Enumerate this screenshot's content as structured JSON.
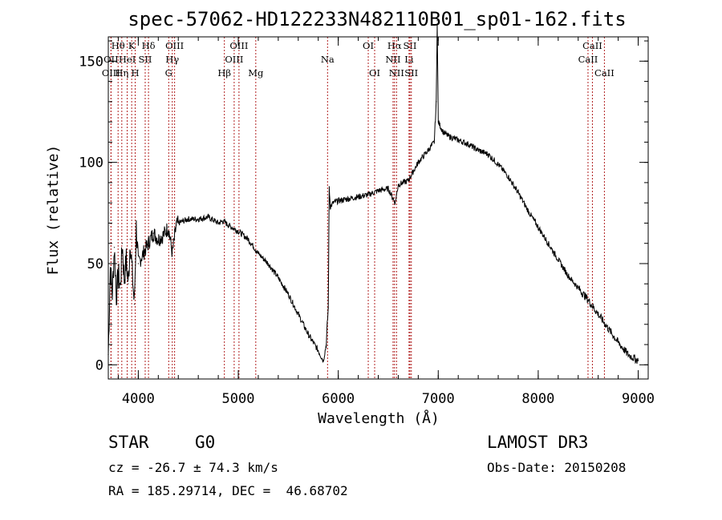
{
  "chart_data": {
    "type": "line",
    "title": "spec-57062-HD122233N482110B01_sp01-162.fits",
    "xlabel": "Wavelength (Å)",
    "ylabel": "Flux (relative)",
    "xlim": [
      3700,
      9100
    ],
    "ylim": [
      -7,
      162
    ],
    "xticks": [
      4000,
      5000,
      6000,
      7000,
      8000,
      9000
    ],
    "yticks": [
      0,
      50,
      100,
      150
    ],
    "x_minor_step": 200,
    "y_minor_step": 10,
    "series": [
      {
        "name": "Flux",
        "points": [
          [
            3700,
            5
          ],
          [
            3720,
            48
          ],
          [
            3740,
            35
          ],
          [
            3760,
            58
          ],
          [
            3780,
            34
          ],
          [
            3800,
            45
          ],
          [
            3820,
            38
          ],
          [
            3840,
            60
          ],
          [
            3860,
            42
          ],
          [
            3880,
            52
          ],
          [
            3900,
            40
          ],
          [
            3920,
            62
          ],
          [
            3940,
            45
          ],
          [
            3960,
            30
          ],
          [
            3980,
            68
          ],
          [
            4000,
            50
          ],
          [
            4050,
            55
          ],
          [
            4100,
            60
          ],
          [
            4150,
            65
          ],
          [
            4200,
            62
          ],
          [
            4250,
            64
          ],
          [
            4300,
            68
          ],
          [
            4340,
            55
          ],
          [
            4380,
            69
          ],
          [
            4400,
            70
          ],
          [
            4500,
            72
          ],
          [
            4600,
            72
          ],
          [
            4700,
            73
          ],
          [
            4800,
            70
          ],
          [
            4850,
            71
          ],
          [
            4900,
            69
          ],
          [
            5000,
            66
          ],
          [
            5100,
            62
          ],
          [
            5200,
            55
          ],
          [
            5300,
            50
          ],
          [
            5400,
            43
          ],
          [
            5500,
            35
          ],
          [
            5600,
            25
          ],
          [
            5700,
            15
          ],
          [
            5800,
            7
          ],
          [
            5850,
            2
          ],
          [
            5880,
            10
          ],
          [
            5890,
            20
          ],
          [
            5900,
            28
          ],
          [
            5910,
            88
          ],
          [
            5920,
            78
          ],
          [
            5950,
            80
          ],
          [
            6000,
            81
          ],
          [
            6100,
            82
          ],
          [
            6200,
            83
          ],
          [
            6300,
            84
          ],
          [
            6400,
            86
          ],
          [
            6500,
            87
          ],
          [
            6550,
            82
          ],
          [
            6570,
            80
          ],
          [
            6600,
            89
          ],
          [
            6700,
            91
          ],
          [
            6800,
            100
          ],
          [
            6900,
            106
          ],
          [
            6960,
            110
          ],
          [
            6980,
            130
          ],
          [
            6990,
            170
          ],
          [
            7000,
            120
          ],
          [
            7050,
            115
          ],
          [
            7100,
            113
          ],
          [
            7200,
            111
          ],
          [
            7300,
            109
          ],
          [
            7400,
            106
          ],
          [
            7500,
            104
          ],
          [
            7600,
            99
          ],
          [
            7700,
            93
          ],
          [
            7800,
            85
          ],
          [
            7900,
            76
          ],
          [
            8000,
            68
          ],
          [
            8100,
            60
          ],
          [
            8200,
            52
          ],
          [
            8300,
            44
          ],
          [
            8400,
            38
          ],
          [
            8500,
            32
          ],
          [
            8600,
            25
          ],
          [
            8700,
            18
          ],
          [
            8800,
            11
          ],
          [
            8900,
            5
          ],
          [
            9000,
            2
          ]
        ]
      }
    ],
    "lines": [
      {
        "name": "Hθ",
        "wave": 3798,
        "row": 1
      },
      {
        "name": "OII",
        "wave": 3727,
        "row": 2
      },
      {
        "name": "OIII",
        "wave": 3727,
        "row": 3
      },
      {
        "name": "K",
        "wave": 3934,
        "row": 1
      },
      {
        "name": "HeI",
        "wave": 3889,
        "row": 2
      },
      {
        "name": "Hη",
        "wave": 3835,
        "row": 3
      },
      {
        "name": "Hδ",
        "wave": 4102,
        "row": 1
      },
      {
        "name": "SII",
        "wave": 4069,
        "row": 2
      },
      {
        "name": "H",
        "wave": 3969,
        "row": 3
      },
      {
        "name": "OIII",
        "wave": 4363,
        "row": 1
      },
      {
        "name": "Hγ",
        "wave": 4340,
        "row": 2
      },
      {
        "name": "G",
        "wave": 4304,
        "row": 3
      },
      {
        "name": "OIII",
        "wave": 5007,
        "row": 1
      },
      {
        "name": "OIII",
        "wave": 4959,
        "row": 2
      },
      {
        "name": "Hβ",
        "wave": 4861,
        "row": 3
      },
      {
        "name": "Mg",
        "wave": 5175,
        "row": 3
      },
      {
        "name": "Na",
        "wave": 5893,
        "row": 2
      },
      {
        "name": "OI",
        "wave": 6300,
        "row": 1
      },
      {
        "name": "OI",
        "wave": 6364,
        "row": 3
      },
      {
        "name": "Hα",
        "wave": 6563,
        "row": 1
      },
      {
        "name": "NII",
        "wave": 6548,
        "row": 2
      },
      {
        "name": "NII",
        "wave": 6583,
        "row": 3
      },
      {
        "name": "SII",
        "wave": 6717,
        "row": 1
      },
      {
        "name": "Li",
        "wave": 6708,
        "row": 2
      },
      {
        "name": "SII",
        "wave": 6731,
        "row": 3
      },
      {
        "name": "CaII",
        "wave": 8542,
        "row": 1
      },
      {
        "name": "CaII",
        "wave": 8498,
        "row": 2
      },
      {
        "name": "CaII",
        "wave": 8662,
        "row": 3
      }
    ]
  },
  "info": {
    "object_class": "STAR",
    "subclass": "G0",
    "survey": "LAMOST DR3",
    "redshift": "cz = -26.7 ± 74.3 km/s",
    "obs_date": "Obs-Date: 20150208",
    "coords": "RA = 185.29714, DEC =  46.68702"
  }
}
